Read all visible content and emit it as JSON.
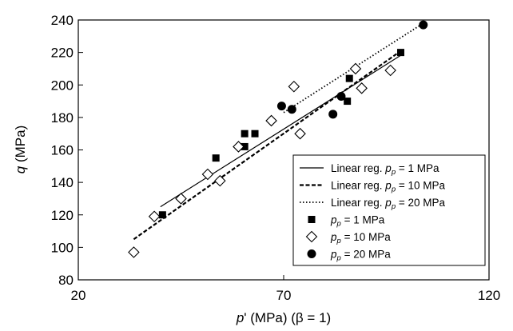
{
  "chart_data": {
    "type": "scatter",
    "xlim": [
      20,
      120
    ],
    "ylim": [
      80,
      240
    ],
    "x_ticks": [
      "20",
      "70",
      "120"
    ],
    "y_ticks": [
      "80",
      "100",
      "120",
      "140",
      "160",
      "180",
      "200",
      "220",
      "240"
    ],
    "grid": false,
    "legend_position": "lower-right",
    "xlabel": {
      "p": "p",
      "rest": "' (MPa) (β = 1)"
    },
    "ylabel": {
      "q": "q",
      "rest": " (MPa)"
    },
    "legend": [
      {
        "kind": "line",
        "style": "solid",
        "text": "Linear reg. ",
        "sym": "p",
        "sub": "p",
        "val": " =   1 MPa"
      },
      {
        "kind": "line",
        "style": "dashed",
        "text": "Linear reg. ",
        "sym": "p",
        "sub": "p",
        "val": " = 10 MPa"
      },
      {
        "kind": "line",
        "style": "dotted",
        "text": "Linear reg. ",
        "sym": "p",
        "sub": "p",
        "val": " = 20 MPa"
      },
      {
        "kind": "marker",
        "style": "square",
        "text": "",
        "sym": "p",
        "sub": "p",
        "val": " =   1 MPa"
      },
      {
        "kind": "marker",
        "style": "diamond",
        "text": "",
        "sym": "p",
        "sub": "p",
        "val": " = 10 MPa"
      },
      {
        "kind": "marker",
        "style": "circle",
        "text": "",
        "sym": "p",
        "sub": "p",
        "val": " = 20 MPa"
      }
    ],
    "series": [
      {
        "marker": "square",
        "points": [
          [
            40.5,
            120
          ],
          [
            53.5,
            155
          ],
          [
            60.5,
            162
          ],
          [
            60.5,
            170
          ],
          [
            63,
            170
          ],
          [
            85.5,
            190
          ],
          [
            86,
            204
          ],
          [
            98.5,
            220
          ]
        ]
      },
      {
        "marker": "diamond",
        "points": [
          [
            33.5,
            97
          ],
          [
            38.5,
            119
          ],
          [
            45,
            130
          ],
          [
            51.5,
            145
          ],
          [
            54.5,
            141
          ],
          [
            59,
            162
          ],
          [
            67,
            178
          ],
          [
            72.5,
            199
          ],
          [
            74,
            170
          ],
          [
            87.5,
            210
          ],
          [
            89,
            198
          ],
          [
            96,
            209
          ]
        ]
      },
      {
        "marker": "circle",
        "points": [
          [
            69.5,
            187
          ],
          [
            72,
            185
          ],
          [
            82,
            182
          ],
          [
            84,
            193
          ],
          [
            104,
            237
          ]
        ]
      }
    ],
    "regression_lines": [
      {
        "style": "solid",
        "from": [
          40,
          125
        ],
        "to": [
          99,
          219
        ]
      },
      {
        "style": "dashed",
        "from": [
          33.5,
          105
        ],
        "to": [
          98,
          220
        ]
      },
      {
        "style": "dotted",
        "from": [
          70,
          183
        ],
        "to": [
          104,
          238
        ]
      }
    ]
  }
}
